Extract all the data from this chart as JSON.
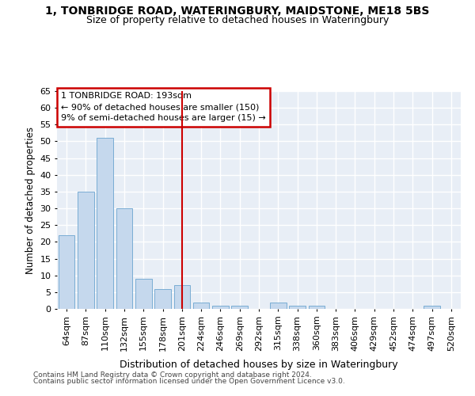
{
  "title_line1": "1, TONBRIDGE ROAD, WATERINGBURY, MAIDSTONE, ME18 5BS",
  "title_line2": "Size of property relative to detached houses in Wateringbury",
  "xlabel": "Distribution of detached houses by size in Wateringbury",
  "ylabel": "Number of detached properties",
  "categories": [
    "64sqm",
    "87sqm",
    "110sqm",
    "132sqm",
    "155sqm",
    "178sqm",
    "201sqm",
    "224sqm",
    "246sqm",
    "269sqm",
    "292sqm",
    "315sqm",
    "338sqm",
    "360sqm",
    "383sqm",
    "406sqm",
    "429sqm",
    "452sqm",
    "474sqm",
    "497sqm",
    "520sqm"
  ],
  "values": [
    22,
    35,
    51,
    30,
    9,
    6,
    7,
    2,
    1,
    1,
    0,
    2,
    1,
    1,
    0,
    0,
    0,
    0,
    0,
    1,
    0
  ],
  "bar_color": "#c5d8ed",
  "bar_edge_color": "#7aadd4",
  "bg_color": "#e8eef6",
  "grid_color": "#ffffff",
  "property_line_x": 6.0,
  "property_label": "1 TONBRIDGE ROAD: 193sqm",
  "property_stat1": "← 90% of detached houses are smaller (150)",
  "property_stat2": "9% of semi-detached houses are larger (15) →",
  "annotation_box_color": "#cc0000",
  "vline_color": "#cc0000",
  "ylim": [
    0,
    65
  ],
  "yticks": [
    0,
    5,
    10,
    15,
    20,
    25,
    30,
    35,
    40,
    45,
    50,
    55,
    60,
    65
  ],
  "footnote1": "Contains HM Land Registry data © Crown copyright and database right 2024.",
  "footnote2": "Contains public sector information licensed under the Open Government Licence v3.0.",
  "fig_bg": "#ffffff"
}
